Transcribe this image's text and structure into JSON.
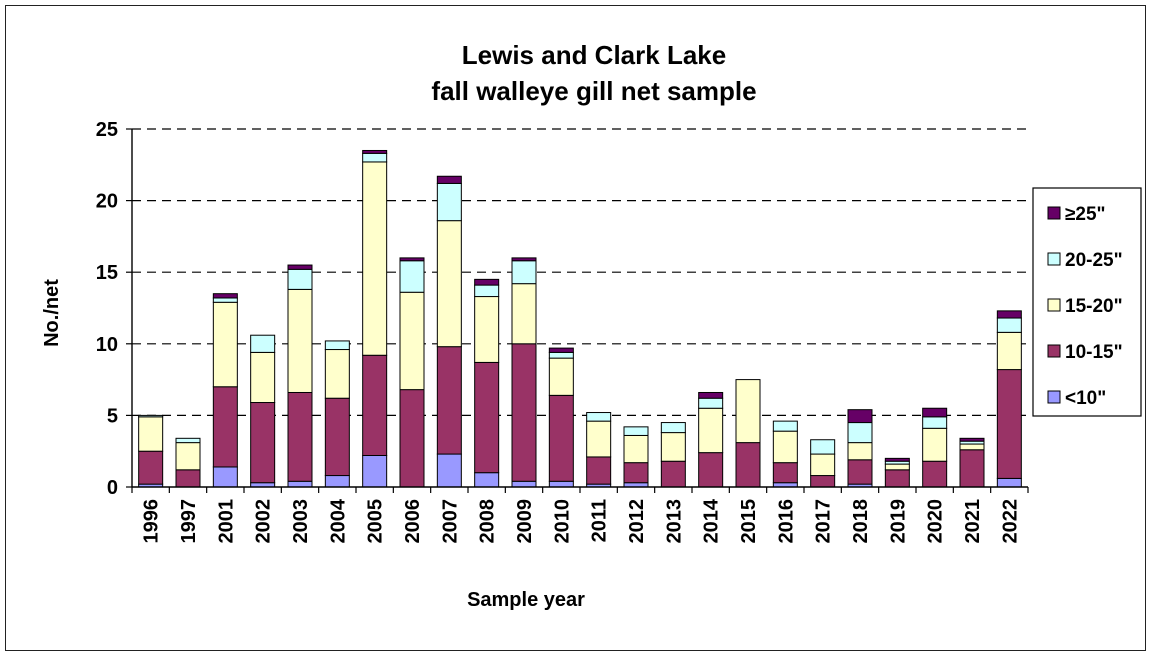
{
  "chart_data": {
    "type": "bar",
    "stacked": true,
    "title": [
      "Lewis and Clark Lake",
      "fall walleye gill net sample"
    ],
    "xlabel": "Sample year",
    "ylabel": "No./net",
    "ylim": [
      0,
      25
    ],
    "yticks": [
      "0",
      "5",
      "10",
      "15",
      "20",
      "25"
    ],
    "grid": "dashed horizontal",
    "legend_position": "right",
    "categories": [
      "1996",
      "1997",
      "2001",
      "2002",
      "2003",
      "2004",
      "2005",
      "2006",
      "2007",
      "2008",
      "2009",
      "2010",
      "2011",
      "2012",
      "2013",
      "2014",
      "2015",
      "2016",
      "2017",
      "2018",
      "2019",
      "2020",
      "2021",
      "2022"
    ],
    "series": [
      {
        "name": "<10\"",
        "color": "#9999ff",
        "values": [
          0.2,
          0,
          1.4,
          0.3,
          0.4,
          0.8,
          2.2,
          0,
          2.3,
          1.0,
          0.4,
          0.4,
          0.2,
          0.3,
          0,
          0,
          0,
          0.3,
          0,
          0.2,
          0,
          0,
          0,
          0.6
        ]
      },
      {
        "name": "10-15\"",
        "color": "#993366",
        "values": [
          2.3,
          1.2,
          5.6,
          5.6,
          6.2,
          5.4,
          7.0,
          6.8,
          7.5,
          7.7,
          9.6,
          6.0,
          1.9,
          1.4,
          1.8,
          2.4,
          3.1,
          1.4,
          0.8,
          1.7,
          1.2,
          1.8,
          2.6,
          7.6
        ]
      },
      {
        "name": "15-20\"",
        "color": "#ffffcc",
        "values": [
          2.4,
          1.9,
          5.9,
          3.5,
          7.2,
          3.4,
          13.5,
          6.8,
          8.8,
          4.6,
          4.2,
          2.6,
          2.5,
          1.9,
          2.0,
          3.1,
          4.4,
          2.2,
          1.5,
          1.2,
          0.4,
          2.3,
          0.4,
          2.6
        ]
      },
      {
        "name": "20-25\"",
        "color": "#ccffff",
        "values": [
          0.1,
          0.3,
          0.3,
          1.2,
          1.4,
          0.6,
          0.6,
          2.2,
          2.6,
          0.8,
          1.6,
          0.4,
          0.6,
          0.6,
          0.7,
          0.7,
          0,
          0.7,
          1.0,
          1.4,
          0.2,
          0.8,
          0.2,
          1.0
        ]
      },
      {
        "name": "≥25\"",
        "color": "#660066",
        "values": [
          0,
          0,
          0.3,
          0,
          0.3,
          0,
          0.2,
          0.2,
          0.5,
          0.4,
          0.2,
          0.3,
          0,
          0,
          0,
          0.4,
          0,
          0,
          0,
          0.9,
          0.2,
          0.6,
          0.2,
          0.5
        ]
      }
    ]
  }
}
